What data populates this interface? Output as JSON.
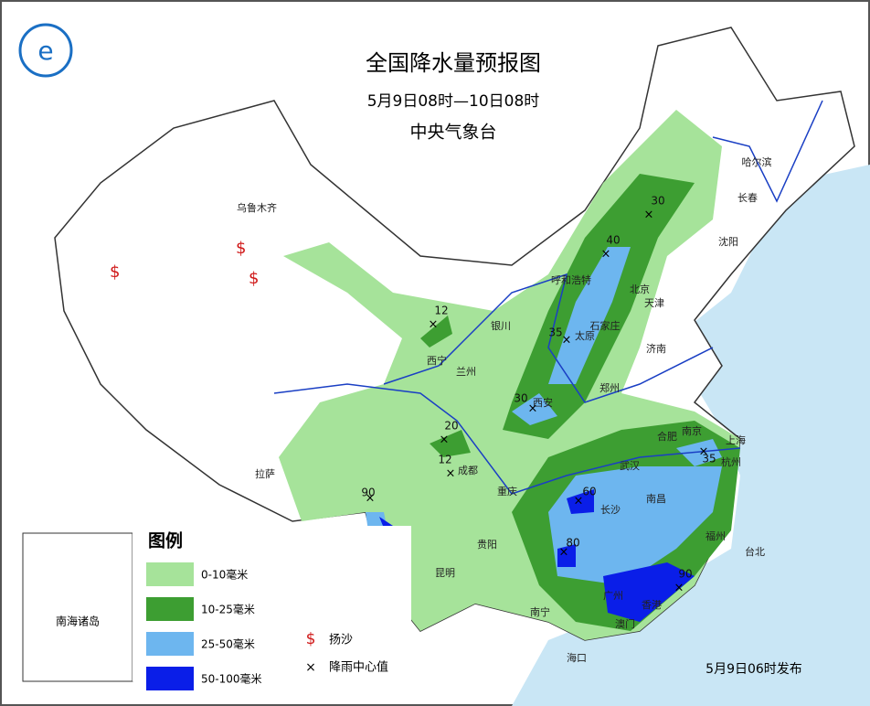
{
  "header": {
    "title": "全国降水量预报图",
    "subtitle": "5月9日08时—10日08时",
    "issuer": "中央气象台"
  },
  "legend": {
    "title": "图例",
    "items": [
      "0-10毫米",
      "10-25毫米",
      "25-50毫米",
      "50-100毫米"
    ],
    "symbols": [
      "扬沙",
      "降雨中心值"
    ]
  },
  "inset": {
    "label": "南海诸岛"
  },
  "cities": [
    "乌鲁木齐",
    "哈尔滨",
    "长春",
    "沈阳",
    "呼和浩特",
    "北京",
    "天津",
    "石家庄",
    "太原",
    "济南",
    "银川",
    "西宁",
    "兰州",
    "郑州",
    "西安",
    "合肥",
    "南京",
    "上海",
    "杭州",
    "武汉",
    "成都",
    "重庆",
    "长沙",
    "南昌",
    "福州",
    "台北",
    "贵阳",
    "昆明",
    "拉萨",
    "南宁",
    "广州",
    "香港",
    "澳门",
    "海口"
  ],
  "rain_centers": [
    30,
    40,
    35,
    12,
    30,
    20,
    12,
    35,
    60,
    80,
    90,
    90
  ],
  "footer": {
    "issued": "5月9日06时发布"
  }
}
